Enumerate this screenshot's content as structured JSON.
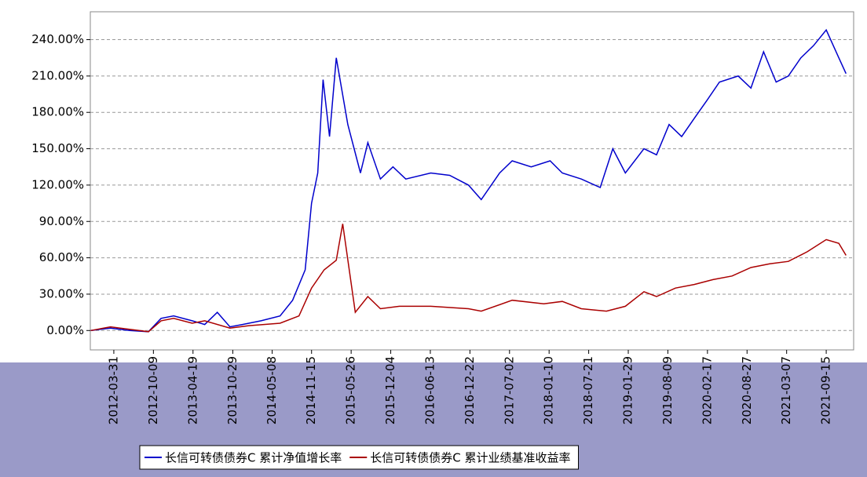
{
  "chart_data": {
    "type": "line",
    "xlim": [
      "2011-12-08",
      "2022-01-26"
    ],
    "xticks": [
      "2012-03-31",
      "2012-10-09",
      "2013-04-19",
      "2013-10-29",
      "2014-05-08",
      "2014-11-15",
      "2015-05-26",
      "2015-12-04",
      "2016-06-13",
      "2016-12-22",
      "2017-07-02",
      "2018-01-10",
      "2018-07-21",
      "2019-01-29",
      "2019-08-09",
      "2020-02-17",
      "2020-08-27",
      "2021-03-07",
      "2021-09-15"
    ],
    "ylim": [
      -16,
      263
    ],
    "yticks": [
      {
        "value": 0,
        "label": "0.00%"
      },
      {
        "value": 30,
        "label": "30.00%"
      },
      {
        "value": 60,
        "label": "60.00%"
      },
      {
        "value": 90,
        "label": "90.00%"
      },
      {
        "value": 120,
        "label": "120.00%"
      },
      {
        "value": 150,
        "label": "150.00%"
      },
      {
        "value": 180,
        "label": "180.00%"
      },
      {
        "value": 210,
        "label": "210.00%"
      },
      {
        "value": 240,
        "label": "240.00%"
      }
    ],
    "grid": true,
    "legend": "bottom",
    "series": [
      {
        "name": "长信可转债债券C 累计净值增长率",
        "color": "#0000cc",
        "x": [
          "2011-12-10",
          "2012-03-15",
          "2012-06-15",
          "2012-09-15",
          "2012-11-15",
          "2013-01-15",
          "2013-04-15",
          "2013-06-15",
          "2013-08-15",
          "2013-10-15",
          "2013-12-15",
          "2014-03-15",
          "2014-06-15",
          "2014-08-15",
          "2014-10-15",
          "2014-11-15",
          "2014-12-15",
          "2015-01-10",
          "2015-02-10",
          "2015-03-15",
          "2015-05-10",
          "2015-07-10",
          "2015-08-15",
          "2015-10-15",
          "2015-12-15",
          "2016-02-15",
          "2016-06-15",
          "2016-09-15",
          "2016-12-15",
          "2017-02-15",
          "2017-05-15",
          "2017-07-15",
          "2017-10-15",
          "2018-01-15",
          "2018-03-15",
          "2018-06-15",
          "2018-09-15",
          "2018-11-15",
          "2019-01-15",
          "2019-04-15",
          "2019-06-15",
          "2019-08-15",
          "2019-10-15",
          "2019-12-15",
          "2020-02-15",
          "2020-04-15",
          "2020-07-15",
          "2020-09-15",
          "2020-11-15",
          "2021-01-15",
          "2021-03-15",
          "2021-05-15",
          "2021-07-15",
          "2021-09-15",
          "2021-11-15",
          "2021-12-20"
        ],
        "values": [
          0,
          2,
          0,
          -1,
          10,
          12,
          8,
          5,
          15,
          3,
          5,
          8,
          12,
          25,
          50,
          105,
          130,
          207,
          160,
          225,
          170,
          130,
          155,
          125,
          135,
          125,
          130,
          128,
          120,
          108,
          130,
          140,
          135,
          140,
          130,
          125,
          118,
          150,
          130,
          150,
          145,
          170,
          160,
          175,
          190,
          205,
          210,
          200,
          230,
          205,
          210,
          225,
          235,
          248,
          225,
          212
        ]
      },
      {
        "name": "长信可转债债券C 累计业绩基准收益率",
        "color": "#aa0000",
        "x": [
          "2011-12-10",
          "2012-03-15",
          "2012-06-15",
          "2012-09-15",
          "2012-11-15",
          "2013-01-15",
          "2013-04-15",
          "2013-06-15",
          "2013-10-15",
          "2014-01-15",
          "2014-06-15",
          "2014-09-15",
          "2014-11-15",
          "2015-01-15",
          "2015-03-15",
          "2015-04-15",
          "2015-06-15",
          "2015-08-15",
          "2015-10-15",
          "2016-01-15",
          "2016-06-15",
          "2016-12-15",
          "2017-02-15",
          "2017-07-15",
          "2017-12-15",
          "2018-03-15",
          "2018-06-15",
          "2018-10-15",
          "2019-01-15",
          "2019-04-15",
          "2019-06-15",
          "2019-09-15",
          "2019-12-15",
          "2020-03-15",
          "2020-06-15",
          "2020-09-15",
          "2020-12-15",
          "2021-03-15",
          "2021-06-15",
          "2021-09-15",
          "2021-11-15",
          "2021-12-20"
        ],
        "values": [
          0,
          3,
          1,
          -1,
          8,
          10,
          6,
          8,
          2,
          4,
          6,
          12,
          35,
          50,
          58,
          88,
          15,
          28,
          18,
          20,
          20,
          18,
          16,
          25,
          22,
          24,
          18,
          16,
          20,
          32,
          28,
          35,
          38,
          42,
          45,
          52,
          55,
          57,
          65,
          75,
          72,
          62
        ]
      }
    ]
  }
}
